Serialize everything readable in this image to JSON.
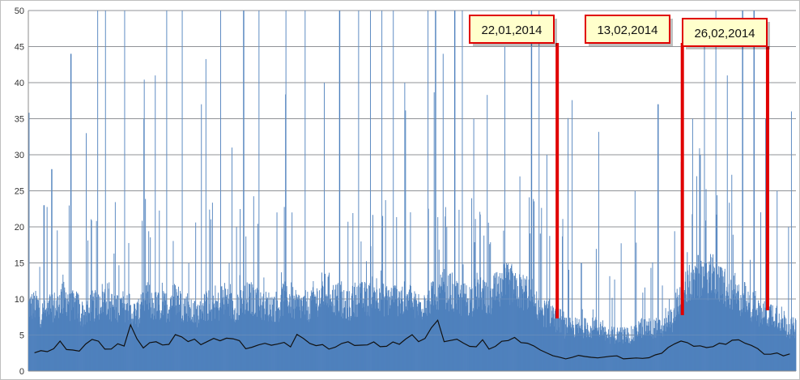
{
  "chart_data": {
    "type": "bar",
    "title": "",
    "xlabel": "",
    "ylabel": "",
    "ylim": [
      0,
      50
    ],
    "y_ticks": [
      "0",
      "5",
      "10",
      "15",
      "20",
      "25",
      "30",
      "35",
      "40",
      "45",
      "50"
    ],
    "grid": true,
    "legend": "none",
    "series": [
      {
        "type": "bar",
        "color": "#4f81bd",
        "description_points": "dense spiky bar series, ~1900 bars",
        "baseline_values": [
          9,
          8,
          9,
          10,
          9,
          8,
          9,
          10,
          9,
          9,
          8,
          10,
          9,
          9,
          10,
          9,
          8,
          9,
          9,
          10,
          9,
          10,
          10,
          9,
          9,
          10,
          9,
          9,
          10,
          11,
          10,
          9,
          10,
          10,
          11,
          10,
          10,
          10,
          9,
          10,
          11,
          11,
          10,
          10,
          11,
          10,
          11,
          12,
          11,
          11,
          9,
          8,
          7,
          6,
          6,
          6,
          6,
          5,
          5,
          5,
          6,
          6,
          6,
          7,
          10,
          12,
          13,
          13,
          12,
          11,
          10,
          9,
          8,
          8,
          7,
          6
        ],
        "peaks": [
          [
            0.02,
            23
          ],
          [
            0.03,
            28
          ],
          [
            0.055,
            44
          ],
          [
            0.075,
            33
          ],
          [
            0.09,
            50
          ],
          [
            0.1,
            50
          ],
          [
            0.125,
            50
          ],
          [
            0.15,
            35
          ],
          [
            0.165,
            41
          ],
          [
            0.18,
            50
          ],
          [
            0.2,
            50
          ],
          [
            0.225,
            37
          ],
          [
            0.25,
            50
          ],
          [
            0.265,
            31
          ],
          [
            0.28,
            50
          ],
          [
            0.3,
            50
          ],
          [
            0.335,
            50
          ],
          [
            0.36,
            50
          ],
          [
            0.385,
            40
          ],
          [
            0.405,
            50
          ],
          [
            0.43,
            50
          ],
          [
            0.445,
            50
          ],
          [
            0.46,
            50
          ],
          [
            0.475,
            50
          ],
          [
            0.49,
            40
          ],
          [
            0.52,
            50
          ],
          [
            0.53,
            50
          ],
          [
            0.54,
            44
          ],
          [
            0.555,
            50
          ],
          [
            0.565,
            50
          ],
          [
            0.58,
            35
          ],
          [
            0.62,
            45
          ],
          [
            0.64,
            27
          ],
          [
            0.655,
            50
          ],
          [
            0.665,
            50
          ],
          [
            0.675,
            30
          ],
          [
            0.72,
            15
          ],
          [
            0.79,
            25
          ],
          [
            0.82,
            37
          ],
          [
            0.85,
            29
          ],
          [
            0.865,
            35
          ],
          [
            0.875,
            30
          ],
          [
            0.895,
            50
          ],
          [
            0.91,
            41
          ],
          [
            0.93,
            50
          ],
          [
            0.945,
            50
          ],
          [
            0.96,
            35
          ],
          [
            0.975,
            25
          ],
          [
            0.99,
            20
          ]
        ]
      },
      {
        "type": "line",
        "color": "#111111",
        "values": [
          2.5,
          2.7,
          2.6,
          3.0,
          4.3,
          3.0,
          2.8,
          2.9,
          3.9,
          4.5,
          4.0,
          3.1,
          3.0,
          3.7,
          3.5,
          6.5,
          4.5,
          3.2,
          3.8,
          4.0,
          3.5,
          3.6,
          5.0,
          4.8,
          4.2,
          4.5,
          3.8,
          4.2,
          4.5,
          4.3,
          4.6,
          4.6,
          4.2,
          3.0,
          3.2,
          3.5,
          3.8,
          3.5,
          3.9,
          4.0,
          3.3,
          5.0,
          4.5,
          3.8,
          3.5,
          3.8,
          3.0,
          3.3,
          3.8,
          4.0,
          3.6,
          3.5,
          3.6,
          4.0,
          3.3,
          3.5,
          4.0,
          3.8,
          4.5,
          5.0,
          4.2,
          4.6,
          6.0,
          7.0,
          4.0,
          4.2,
          4.3,
          3.8,
          3.3,
          3.5,
          4.5,
          3.0,
          3.5,
          4.2,
          4.3,
          4.6,
          4.0,
          3.8,
          3.4,
          2.8,
          2.5,
          2.0,
          1.8,
          1.7,
          1.8,
          2.2,
          2.0,
          1.9,
          1.8,
          2.0,
          2.2,
          2.1,
          1.8,
          1.7,
          1.9,
          1.8,
          2.0,
          2.2,
          2.6,
          3.2,
          3.8,
          4.2,
          3.8,
          3.5,
          3.6,
          3.2,
          3.5,
          4.0,
          3.8,
          4.2,
          4.4,
          4.0,
          3.5,
          3.0,
          2.2,
          2.4,
          2.6,
          2.2,
          2.4
        ]
      }
    ],
    "annotations": [
      {
        "label": "22,01,2014",
        "x_frac": 0.689
      },
      {
        "label": "13,02,2014",
        "x_frac": 0.852
      },
      {
        "label": "26,02,2014",
        "x_frac": 0.963
      }
    ]
  }
}
